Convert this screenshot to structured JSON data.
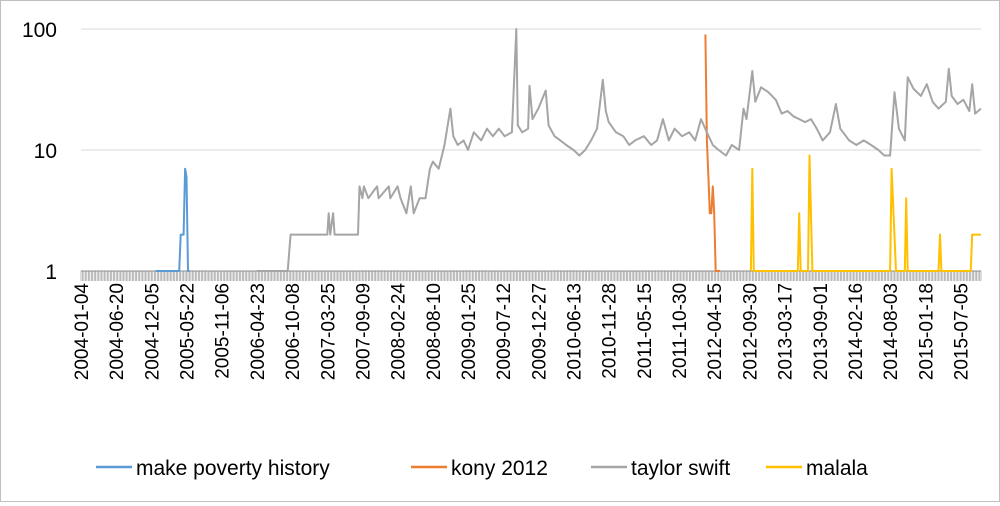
{
  "chart_data": {
    "type": "line",
    "y_scale": "log",
    "ylim": [
      1,
      100
    ],
    "y_ticks": [
      "1",
      "10",
      "100"
    ],
    "x_range": [
      "2004-01-04",
      "2015-10-11"
    ],
    "x_ticks": [
      "2004-01-04",
      "2004-06-20",
      "2004-12-05",
      "2005-05-22",
      "2005-11-06",
      "2006-04-23",
      "2006-10-08",
      "2007-03-25",
      "2007-09-09",
      "2008-02-24",
      "2008-08-10",
      "2009-01-25",
      "2009-07-12",
      "2009-12-27",
      "2010-06-13",
      "2010-11-28",
      "2011-05-15",
      "2011-10-30",
      "2012-04-15",
      "2012-09-30",
      "2013-03-17",
      "2013-09-01",
      "2014-02-16",
      "2014-08-03",
      "2015-01-18",
      "2015-07-05"
    ],
    "grid": "horizontal",
    "legend_position": "bottom",
    "series": [
      {
        "name": "make poverty history",
        "color": "#5b9bd5",
        "points": [
          [
            "2004-12-26",
            1
          ],
          [
            "2005-04-17",
            1
          ],
          [
            "2005-04-24",
            2
          ],
          [
            "2005-05-08",
            2
          ],
          [
            "2005-05-15",
            7
          ],
          [
            "2005-05-22",
            6
          ],
          [
            "2005-05-29",
            1
          ],
          [
            "2005-06-05",
            1
          ]
        ]
      },
      {
        "name": "kony 2012",
        "color": "#ed7d31",
        "points": [
          [
            "2012-03-04",
            90
          ],
          [
            "2012-03-11",
            12
          ],
          [
            "2012-03-18",
            6
          ],
          [
            "2012-03-25",
            3
          ],
          [
            "2012-04-01",
            3
          ],
          [
            "2012-04-08",
            5
          ],
          [
            "2012-04-15",
            3
          ],
          [
            "2012-04-22",
            1
          ],
          [
            "2012-04-29",
            1
          ],
          [
            "2012-05-13",
            1
          ]
        ]
      },
      {
        "name": "taylor swift",
        "color": "#a5a5a5",
        "points": [
          [
            "2006-04-23",
            1
          ],
          [
            "2006-09-17",
            1
          ],
          [
            "2006-10-01",
            2
          ],
          [
            "2006-12-31",
            2
          ],
          [
            "2007-03-25",
            2
          ],
          [
            "2007-04-01",
            3
          ],
          [
            "2007-04-08",
            2
          ],
          [
            "2007-04-22",
            3
          ],
          [
            "2007-04-29",
            2
          ],
          [
            "2007-08-19",
            2
          ],
          [
            "2007-08-26",
            5
          ],
          [
            "2007-09-09",
            4
          ],
          [
            "2007-09-16",
            5
          ],
          [
            "2007-10-07",
            4
          ],
          [
            "2007-11-18",
            5
          ],
          [
            "2007-11-25",
            4
          ],
          [
            "2008-01-13",
            5
          ],
          [
            "2008-01-20",
            4
          ],
          [
            "2008-02-24",
            5
          ],
          [
            "2008-03-09",
            4
          ],
          [
            "2008-04-06",
            3
          ],
          [
            "2008-04-27",
            5
          ],
          [
            "2008-05-11",
            3
          ],
          [
            "2008-06-08",
            4
          ],
          [
            "2008-07-06",
            4
          ],
          [
            "2008-07-27",
            7
          ],
          [
            "2008-08-10",
            8
          ],
          [
            "2008-09-07",
            7
          ],
          [
            "2008-10-05",
            11
          ],
          [
            "2008-11-02",
            22
          ],
          [
            "2008-11-16",
            13
          ],
          [
            "2008-12-07",
            11
          ],
          [
            "2009-01-04",
            12
          ],
          [
            "2009-01-25",
            10
          ],
          [
            "2009-02-22",
            14
          ],
          [
            "2009-03-29",
            12
          ],
          [
            "2009-04-26",
            15
          ],
          [
            "2009-05-24",
            13
          ],
          [
            "2009-06-21",
            15
          ],
          [
            "2009-07-19",
            13
          ],
          [
            "2009-08-23",
            14
          ],
          [
            "2009-09-13",
            100
          ],
          [
            "2009-09-20",
            16
          ],
          [
            "2009-10-11",
            14
          ],
          [
            "2009-11-08",
            15
          ],
          [
            "2009-11-15",
            34
          ],
          [
            "2009-11-29",
            18
          ],
          [
            "2009-12-27",
            22
          ],
          [
            "2010-01-31",
            31
          ],
          [
            "2010-02-14",
            16
          ],
          [
            "2010-03-14",
            13
          ],
          [
            "2010-04-11",
            12
          ],
          [
            "2010-05-09",
            11
          ],
          [
            "2010-06-13",
            10
          ],
          [
            "2010-07-11",
            9
          ],
          [
            "2010-08-08",
            10
          ],
          [
            "2010-09-05",
            12
          ],
          [
            "2010-10-03",
            15
          ],
          [
            "2010-10-31",
            38
          ],
          [
            "2010-11-14",
            21
          ],
          [
            "2010-11-28",
            17
          ],
          [
            "2011-01-02",
            14
          ],
          [
            "2011-02-06",
            13
          ],
          [
            "2011-03-06",
            11
          ],
          [
            "2011-04-03",
            12
          ],
          [
            "2011-05-15",
            13
          ],
          [
            "2011-06-19",
            11
          ],
          [
            "2011-07-17",
            12
          ],
          [
            "2011-08-14",
            18
          ],
          [
            "2011-09-11",
            12
          ],
          [
            "2011-10-09",
            15
          ],
          [
            "2011-11-13",
            13
          ],
          [
            "2011-12-18",
            14
          ],
          [
            "2012-01-15",
            12
          ],
          [
            "2012-02-12",
            18
          ],
          [
            "2012-03-11",
            14
          ],
          [
            "2012-04-08",
            11
          ],
          [
            "2012-05-06",
            10
          ],
          [
            "2012-06-10",
            9
          ],
          [
            "2012-07-08",
            11
          ],
          [
            "2012-08-12",
            10
          ],
          [
            "2012-09-02",
            22
          ],
          [
            "2012-09-16",
            18
          ],
          [
            "2012-10-14",
            45
          ],
          [
            "2012-10-28",
            25
          ],
          [
            "2012-11-25",
            33
          ],
          [
            "2012-12-30",
            30
          ],
          [
            "2013-02-03",
            26
          ],
          [
            "2013-03-03",
            20
          ],
          [
            "2013-03-31",
            21
          ],
          [
            "2013-04-28",
            19
          ],
          [
            "2013-05-26",
            18
          ],
          [
            "2013-06-23",
            17
          ],
          [
            "2013-07-21",
            18
          ],
          [
            "2013-08-18",
            15
          ],
          [
            "2013-09-15",
            12
          ],
          [
            "2013-10-20",
            14
          ],
          [
            "2013-11-17",
            24
          ],
          [
            "2013-12-08",
            15
          ],
          [
            "2014-01-19",
            12
          ],
          [
            "2014-02-23",
            11
          ],
          [
            "2014-03-30",
            12
          ],
          [
            "2014-05-04",
            11
          ],
          [
            "2014-06-08",
            10
          ],
          [
            "2014-07-06",
            9
          ],
          [
            "2014-08-03",
            9
          ],
          [
            "2014-08-24",
            30
          ],
          [
            "2014-09-14",
            15
          ],
          [
            "2014-10-12",
            12
          ],
          [
            "2014-10-26",
            40
          ],
          [
            "2014-11-23",
            32
          ],
          [
            "2014-12-28",
            28
          ],
          [
            "2015-01-25",
            35
          ],
          [
            "2015-02-22",
            25
          ],
          [
            "2015-03-22",
            22
          ],
          [
            "2015-04-26",
            25
          ],
          [
            "2015-05-10",
            47
          ],
          [
            "2015-05-24",
            28
          ],
          [
            "2015-06-21",
            24
          ],
          [
            "2015-07-19",
            26
          ],
          [
            "2015-08-16",
            21
          ],
          [
            "2015-08-30",
            35
          ],
          [
            "2015-09-13",
            20
          ],
          [
            "2015-10-11",
            22
          ]
        ]
      },
      {
        "name": "malala",
        "color": "#ffc000",
        "points": [
          [
            "2012-10-07",
            1
          ],
          [
            "2012-10-14",
            7
          ],
          [
            "2012-10-21",
            1
          ],
          [
            "2012-11-25",
            1
          ],
          [
            "2013-05-19",
            1
          ],
          [
            "2013-05-26",
            3
          ],
          [
            "2013-06-02",
            1
          ],
          [
            "2013-07-07",
            1
          ],
          [
            "2013-07-14",
            9
          ],
          [
            "2013-07-28",
            1
          ],
          [
            "2014-08-03",
            1
          ],
          [
            "2014-08-10",
            7
          ],
          [
            "2014-08-31",
            1
          ],
          [
            "2014-10-12",
            1
          ],
          [
            "2014-10-19",
            4
          ],
          [
            "2014-10-26",
            1
          ],
          [
            "2015-03-22",
            1
          ],
          [
            "2015-03-29",
            2
          ],
          [
            "2015-04-05",
            1
          ],
          [
            "2015-08-23",
            1
          ],
          [
            "2015-08-30",
            2
          ],
          [
            "2015-10-11",
            2
          ]
        ]
      }
    ]
  }
}
